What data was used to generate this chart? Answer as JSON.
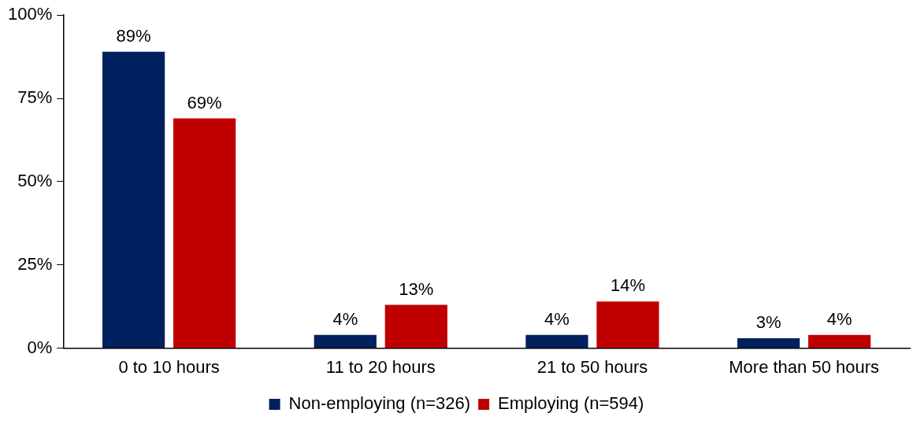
{
  "chart_data": {
    "type": "bar",
    "categories": [
      "0 to 10 hours",
      "11 to 20 hours",
      "21 to 50 hours",
      "More than 50 hours"
    ],
    "series": [
      {
        "name": "Non-employing (n=326)",
        "color": "#002060",
        "values": [
          89,
          4,
          4,
          3
        ],
        "value_labels": [
          "89%",
          "4%",
          "4%",
          "3%"
        ]
      },
      {
        "name": "Employing (n=594)",
        "color": "#c00000",
        "values": [
          69,
          13,
          14,
          4
        ],
        "value_labels": [
          "69%",
          "13%",
          "14%",
          "4%"
        ]
      }
    ],
    "ylim": [
      0,
      100
    ],
    "yticks": [
      {
        "value": 0,
        "label": "0%"
      },
      {
        "value": 25,
        "label": "25%"
      },
      {
        "value": 50,
        "label": "50%"
      },
      {
        "value": 75,
        "label": "75%"
      },
      {
        "value": 100,
        "label": "100%"
      }
    ],
    "grid": false,
    "legend": "bottom"
  }
}
